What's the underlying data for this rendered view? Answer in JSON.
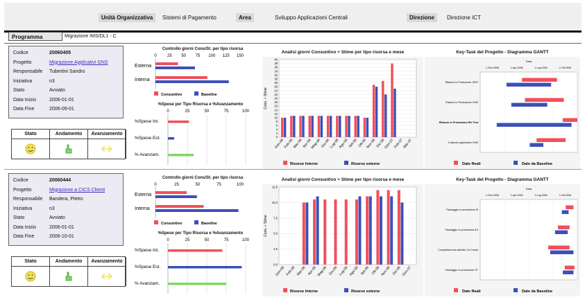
{
  "header": {
    "unita_label": "Unità Organizzativa",
    "unita_value": "Sistemi di Pagamento",
    "area_label": "Area",
    "area_value": "Sviluppo Applicazioni Centrali",
    "direzione_label": "Direzione",
    "direzione_value": "Direzione ICT"
  },
  "programma": {
    "label": "Programma",
    "value": "Migrazione IMS/DL1 - C"
  },
  "colors": {
    "red": "#f0505a",
    "blue": "#3c50b8",
    "green": "#7dd86a",
    "yellow": "#f0e060"
  },
  "projects": [
    {
      "info": [
        {
          "label": "Codice",
          "value": "20060405"
        },
        {
          "label": "Progetto",
          "value": "Migrazione Applicativi GNS"
        },
        {
          "label": "Responsabile",
          "value": "Tubertini Sandro"
        },
        {
          "label": "Iniziativa",
          "value": "n3"
        },
        {
          "label": "Stato",
          "value": "Avviato"
        },
        {
          "label": "Data Inizio",
          "value": "2006-01-01"
        },
        {
          "label": "Data Fine",
          "value": "2006-09-01"
        }
      ],
      "status": {
        "stato": "Stato",
        "andamento": "Andamento",
        "avanzamento": "Avanzamento",
        "stato_icon": "smiley-icon",
        "andamento_icon": "thumb-icon",
        "avanzamento_icon": "arrow-icon"
      },
      "controllo": {
        "title": "Controllo giorni Cons/St. per tipo risorsa",
        "ticks": [
          "0",
          "25",
          "50",
          "75",
          "100",
          "125",
          "150"
        ],
        "rows": [
          {
            "label": "Esterna",
            "consuntivo": 40,
            "baseline": 70
          },
          {
            "label": "Interna",
            "consuntivo": 92,
            "baseline": 130
          }
        ],
        "legend": [
          "Consuntivo",
          "Baseline"
        ]
      },
      "spese": {
        "title": "%Spese per Tipo Risorsa e %Avanzamento",
        "ticks": [
          "0",
          "25",
          "50",
          "75",
          "100"
        ],
        "rows": [
          {
            "label": "%Spese Int.",
            "value": 27,
            "color": "red"
          },
          {
            "label": "%Spese Est.",
            "value": 8,
            "color": "blue"
          },
          {
            "label": "% Avanzam.",
            "value": 33,
            "color": "green"
          }
        ]
      },
      "analisi": {
        "title": "Analisi giorni Consuntivo + Stime per tipo risorsa e mese",
        "ylabel": "Cons. + Stime",
        "yticks": [
          "0",
          "2",
          "4",
          "6",
          "8",
          "10",
          "12",
          "14",
          "16",
          "18",
          "20",
          "22",
          "24",
          "26",
          "28",
          "30",
          "32",
          "34",
          "36",
          "38",
          "40"
        ],
        "months": [
          "Gen-06",
          "Feb-06",
          "Mar-06",
          "Apr-06",
          "Mag-06",
          "Giu-06",
          "Lug-06",
          "Ago-06",
          "Set-06",
          "Ott-06",
          "Nov-06",
          "Dic-06",
          "Gen-07",
          "Feb-07",
          "Mar-07"
        ],
        "interne": [
          10,
          11,
          11,
          11,
          11,
          11,
          11,
          11,
          11,
          10,
          27,
          29,
          38,
          0,
          0
        ],
        "esterne": [
          10,
          11,
          11,
          11,
          11,
          11,
          11,
          11,
          11,
          10,
          26,
          22,
          25,
          0,
          0
        ],
        "ymax": 40,
        "legend": [
          "Risorse Interne",
          "Risorse esterne"
        ]
      },
      "gantt": {
        "title": "Key-Task del Progetto - Diagramma GANTT",
        "header": "Data",
        "dates": [
          "1-Gen-2006",
          "1-Apr-2006",
          "1-Lug-2006",
          "1-Ott-2006"
        ],
        "tasks": [
          {
            "label": "Rilascio in Produzione GRO",
            "red": [
              0.43,
              0.79
            ],
            "blue": [
              0.27,
              0.73
            ]
          },
          {
            "label": "Rilascio in Produzione GNS",
            "red": [
              0.46,
              0.86
            ],
            "blue": [
              0.32,
              0.69
            ]
          },
          {
            "label": "Rilascio in Produzione Rel Test",
            "red": [
              0.85,
              1.0
            ],
            "blue": [
              0.17,
              0.94
            ]
          },
          {
            "label": "Collaudo applicativo GNS",
            "red": [
              0.58,
              0.88
            ],
            "blue": [
              0.51,
              0.65
            ]
          }
        ],
        "legend": [
          "Date Reali",
          "Date da Baseline"
        ]
      }
    },
    {
      "info": [
        {
          "label": "Codice",
          "value": "20060444"
        },
        {
          "label": "Progetto",
          "value": "Migrazione a CICS Clienti"
        },
        {
          "label": "Responsabile",
          "value": "Bandera, Pietro"
        },
        {
          "label": "Iniziativa",
          "value": "n3"
        },
        {
          "label": "Stato",
          "value": "Avviato"
        },
        {
          "label": "Data Inizio",
          "value": "2006-01-01"
        },
        {
          "label": "Data Fine",
          "value": "2006-10-01"
        }
      ],
      "status": {
        "stato": "Stato",
        "andamento": "Andamento",
        "avanzamento": "Avanzamento",
        "stato_icon": "smiley-icon",
        "andamento_icon": "thumb-icon",
        "avanzamento_icon": "arrow-icon"
      },
      "controllo": {
        "title": "Controllo giorni Cons/St. per tipo risorsa",
        "ticks": [
          "0",
          "25",
          "50",
          "75",
          "100"
        ],
        "rows": [
          {
            "label": "Esterna",
            "consuntivo": 37,
            "baseline": 49
          },
          {
            "label": "Interna",
            "consuntivo": 57,
            "baseline": 98
          }
        ],
        "legend": [
          "Consuntivo",
          "Baseline"
        ]
      },
      "spese": {
        "title": "%Spese per Tipo Risorsa e %Avanzamento",
        "ticks": [
          "0",
          "25",
          "50",
          "75",
          "100"
        ],
        "rows": [
          {
            "label": "%Spese Int.",
            "value": 70,
            "color": "red"
          },
          {
            "label": "%Spese Est.",
            "value": 95,
            "color": "blue"
          },
          {
            "label": "% Avanzam.",
            "value": 75,
            "color": "green"
          }
        ]
      },
      "analisi": {
        "title": "Analisi giorni Consuntivo + Stime per tipo risorsa e mese",
        "ylabel": "Cons. + Stime",
        "yticks": [
          "0,0",
          "2,5",
          "5,0",
          "7,5",
          "10,0",
          "12,5"
        ],
        "months": [
          "Gen-06",
          "Feb-06",
          "Mar-06",
          "Apr-06",
          "Mag-06",
          "Giu-06",
          "Lug-06",
          "Ago-06",
          "Set-06",
          "Ott-06",
          "Nov-06",
          "Dic-06",
          "Gen-07"
        ],
        "interne": [
          0,
          0,
          10,
          10.5,
          10.5,
          10.5,
          10.5,
          10.5,
          11,
          12,
          12,
          12,
          0
        ],
        "esterne": [
          0,
          0,
          10,
          11,
          0,
          0,
          0,
          11,
          11,
          11,
          11,
          10,
          0
        ],
        "ymax": 12.5,
        "legend": [
          "Risorse Interne",
          "Risorse esterne"
        ]
      },
      "gantt": {
        "title": "Key-Task del Progetto - Diagramma GANTT",
        "header": "Data",
        "dates": [
          "1-Gen-2006",
          "1-Apr-2006",
          "1-Lug-2006",
          "1-Ott-2006"
        ],
        "tasks": [
          {
            "label": "Passaggio in produzione M",
            "red": [
              0.88,
              0.96
            ],
            "blue": [
              0.84,
              0.91
            ]
          },
          {
            "label": "Passaggio in produzione AS",
            "red": [
              0.8,
              0.92
            ],
            "blue": [
              0.77,
              0.9
            ]
          },
          {
            "label": "Completamento attività Cut Cruise",
            "red": [
              0.7,
              0.92
            ],
            "blue": [
              0.72,
              0.96
            ]
          },
          {
            "label": "Passaggio in produzione ST",
            "red": [
              0.87,
              0.97
            ],
            "blue": [
              0.85,
              0.96
            ]
          }
        ],
        "legend": [
          "Date Reali",
          "Date da Baseline"
        ]
      }
    }
  ]
}
